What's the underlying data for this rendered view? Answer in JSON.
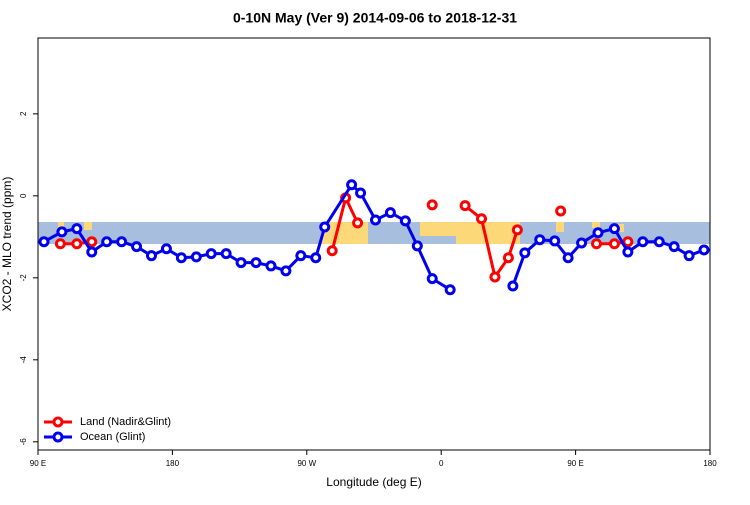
{
  "chart_data": {
    "type": "line",
    "title": "0-10N May (Ver 9)   2014-09-06 to 2018-12-31",
    "x_label": "Longitude (deg E)",
    "y_label": "XCO2 - MLO trend (ppm)",
    "xlim": [
      90,
      540
    ],
    "xticks": [
      {
        "value": 90,
        "label": "90 E"
      },
      {
        "value": 180,
        "label": "180"
      },
      {
        "value": 270,
        "label": "90 W"
      },
      {
        "value": 360,
        "label": "0"
      },
      {
        "value": 450,
        "label": "90 E"
      },
      {
        "value": 540,
        "label": "180"
      }
    ],
    "ylim": [
      -6.2,
      3.85
    ],
    "yticks": [
      2,
      0,
      -2,
      -4,
      -6
    ],
    "legend": "bottom-left",
    "series": [
      {
        "name": "Land (Nadir&Glint)",
        "color": "#ff0000",
        "x": [
          105,
          116,
          126,
          200,
          287,
          296,
          304,
          330,
          354,
          365,
          376,
          387,
          396,
          405,
          411,
          425,
          440,
          450,
          464,
          476,
          485
        ],
        "values": [
          -1.17,
          -1.17,
          -1.12,
          null,
          -1.34,
          -0.05,
          -0.66,
          null,
          -0.22,
          null,
          -0.24,
          -0.56,
          -1.98,
          -1.51,
          -0.83,
          null,
          -0.37,
          null,
          -1.17,
          -1.17,
          -1.12
        ]
      },
      {
        "name": "Ocean (Glint)",
        "color": "#0000ee",
        "x": [
          94,
          106,
          116,
          126,
          136,
          146,
          156,
          166,
          176,
          186,
          196,
          206,
          216,
          226,
          236,
          246,
          256,
          266,
          276,
          282,
          300,
          306,
          316,
          326,
          336,
          344,
          354,
          366,
          386,
          408,
          416,
          426,
          436,
          445,
          454,
          465,
          476,
          485,
          495,
          506,
          516,
          526,
          536
        ],
        "values": [
          -1.12,
          -0.88,
          -0.8,
          -1.37,
          -1.12,
          -1.12,
          -1.24,
          -1.46,
          -1.29,
          -1.51,
          -1.49,
          -1.41,
          -1.41,
          -1.63,
          -1.63,
          -1.71,
          -1.83,
          -1.46,
          -1.51,
          -0.76,
          0.27,
          0.07,
          -0.59,
          -0.41,
          -0.61,
          -1.22,
          -2.02,
          -2.29,
          null,
          -2.2,
          -1.39,
          -1.07,
          -1.1,
          -1.51,
          -1.15,
          -0.9,
          -0.8,
          -1.37,
          -1.12,
          -1.12,
          -1.24,
          -1.46,
          -1.32
        ]
      }
    ]
  }
}
